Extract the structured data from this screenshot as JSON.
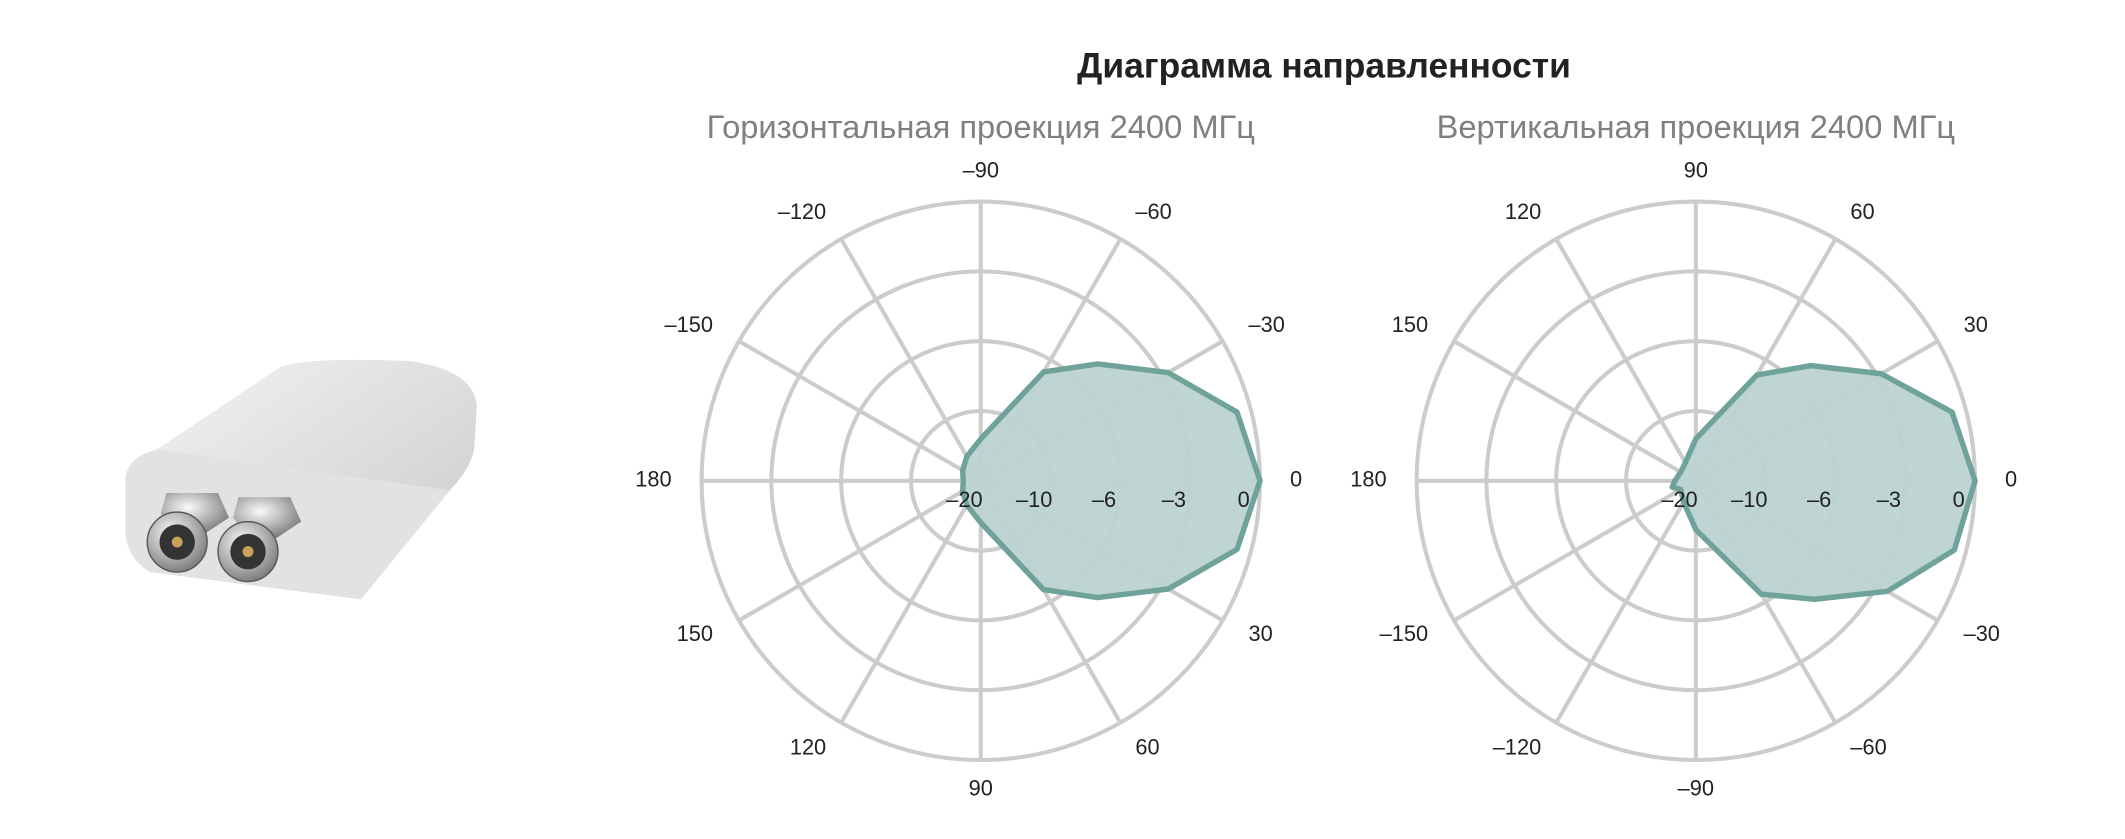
{
  "title": "Диаграмма направленности",
  "chart_data": [
    {
      "type": "polar",
      "title": "Горизонтальная проекция 2400 МГц",
      "direction": "clockwise",
      "angle_ticks": [
        {
          "value": -150,
          "label": "–150"
        },
        {
          "value": -120,
          "label": "–120"
        },
        {
          "value": -90,
          "label": "–90"
        },
        {
          "value": -60,
          "label": "–60"
        },
        {
          "value": -30,
          "label": "–30"
        },
        0,
        30,
        60,
        90,
        120,
        150,
        180
      ],
      "rlim": [
        -20,
        0
      ],
      "rticks": [
        {
          "value": -20,
          "label": "–20"
        },
        {
          "value": -10,
          "label": "–10"
        },
        {
          "value": -6,
          "label": "–6"
        },
        {
          "value": -3,
          "label": "–3"
        },
        0
      ],
      "grid": true,
      "series": [
        {
          "color": "#6fa39a",
          "fill": "#bcd3d2",
          "theta": [
            -180,
            -150,
            -120,
            -90,
            -60,
            -45,
            -30,
            -15,
            0,
            15,
            30,
            45,
            60,
            90,
            120,
            150
          ],
          "values": [
            -17.5,
            -17,
            -16,
            -14,
            -6.8,
            -4.9,
            -2.7,
            -0.6,
            0,
            -0.6,
            -2.7,
            -4.9,
            -6.8,
            -14,
            -16,
            -17
          ]
        }
      ]
    },
    {
      "type": "polar",
      "title": "Вертикальная проекция 2400 МГц",
      "direction": "counterclockwise",
      "angle_ticks": [
        {
          "value": -150,
          "label": "–150"
        },
        {
          "value": -120,
          "label": "–120"
        },
        {
          "value": -90,
          "label": "–90"
        },
        {
          "value": -60,
          "label": "–60"
        },
        {
          "value": -30,
          "label": "–30"
        },
        0,
        30,
        60,
        90,
        120,
        150,
        180
      ],
      "rlim": [
        -20,
        0
      ],
      "rticks": [
        {
          "value": -20,
          "label": "–20"
        },
        {
          "value": -10,
          "label": "–10"
        },
        {
          "value": -6,
          "label": "–6"
        },
        {
          "value": -3,
          "label": "–3"
        },
        0
      ],
      "grid": true,
      "series": [
        {
          "color": "#6fa39a",
          "fill": "#bcd3d2",
          "theta": [
            -180,
            -165,
            -150,
            -120,
            -90,
            -60,
            -45,
            -30,
            -15,
            0,
            15,
            30,
            45,
            60,
            90,
            120,
            150
          ],
          "values": [
            -17,
            -16.5,
            -17.5,
            -16.5,
            -13,
            -6.5,
            -4.8,
            -2.5,
            -0.5,
            0,
            -0.6,
            -2.8,
            -5,
            -7,
            -14,
            -17,
            -17.5
          ]
        }
      ]
    }
  ]
}
